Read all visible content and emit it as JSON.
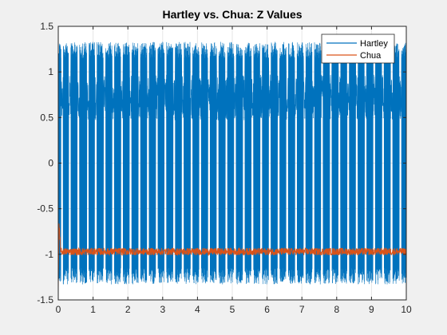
{
  "chart_data": {
    "type": "line",
    "title": "Hartley vs. Chua: Z Values",
    "xlabel": "",
    "ylabel": "",
    "xlim": [
      0,
      10
    ],
    "ylim": [
      -1.5,
      1.5
    ],
    "x_ticks": [
      0,
      1,
      2,
      3,
      4,
      5,
      6,
      7,
      8,
      9,
      10
    ],
    "y_ticks": [
      -1.5,
      -1,
      -0.5,
      0,
      0.5,
      1,
      1.5
    ],
    "x_tick_labels": [
      "0",
      "1",
      "2",
      "3",
      "4",
      "5",
      "6",
      "7",
      "8",
      "9",
      "10"
    ],
    "y_tick_labels": [
      "-1.5",
      "-1",
      "-0.5",
      "0",
      "0.5",
      "1",
      "1.5"
    ],
    "grid": true,
    "legend_position": "top-right",
    "series": [
      {
        "name": "Hartley",
        "color": "#0072BD",
        "description_values": {
          "typical_max": 1.33,
          "typical_min": -1.33,
          "burst_center": 0.72,
          "burst_period_approx": 0.28,
          "burst_times": [
            0.08,
            0.3,
            0.55,
            0.82,
            1.05,
            1.3,
            1.55,
            1.8,
            2.05,
            2.3,
            2.55,
            2.8,
            3.05,
            3.3,
            3.55,
            3.8,
            4.05,
            4.3,
            4.55,
            4.8,
            5.05,
            5.3,
            5.55,
            5.8,
            6.05,
            6.3,
            6.55,
            6.8,
            7.05,
            7.3,
            7.55,
            7.8,
            8.05,
            8.3,
            8.55,
            8.8,
            9.05,
            9.3,
            9.55,
            9.8
          ]
        }
      },
      {
        "name": "Chua",
        "color": "#D95319",
        "description_values": {
          "initial_value": -1.43,
          "initial_peak": -0.72,
          "steady_state": -0.97,
          "noise_amplitude": 0.04
        }
      }
    ]
  }
}
